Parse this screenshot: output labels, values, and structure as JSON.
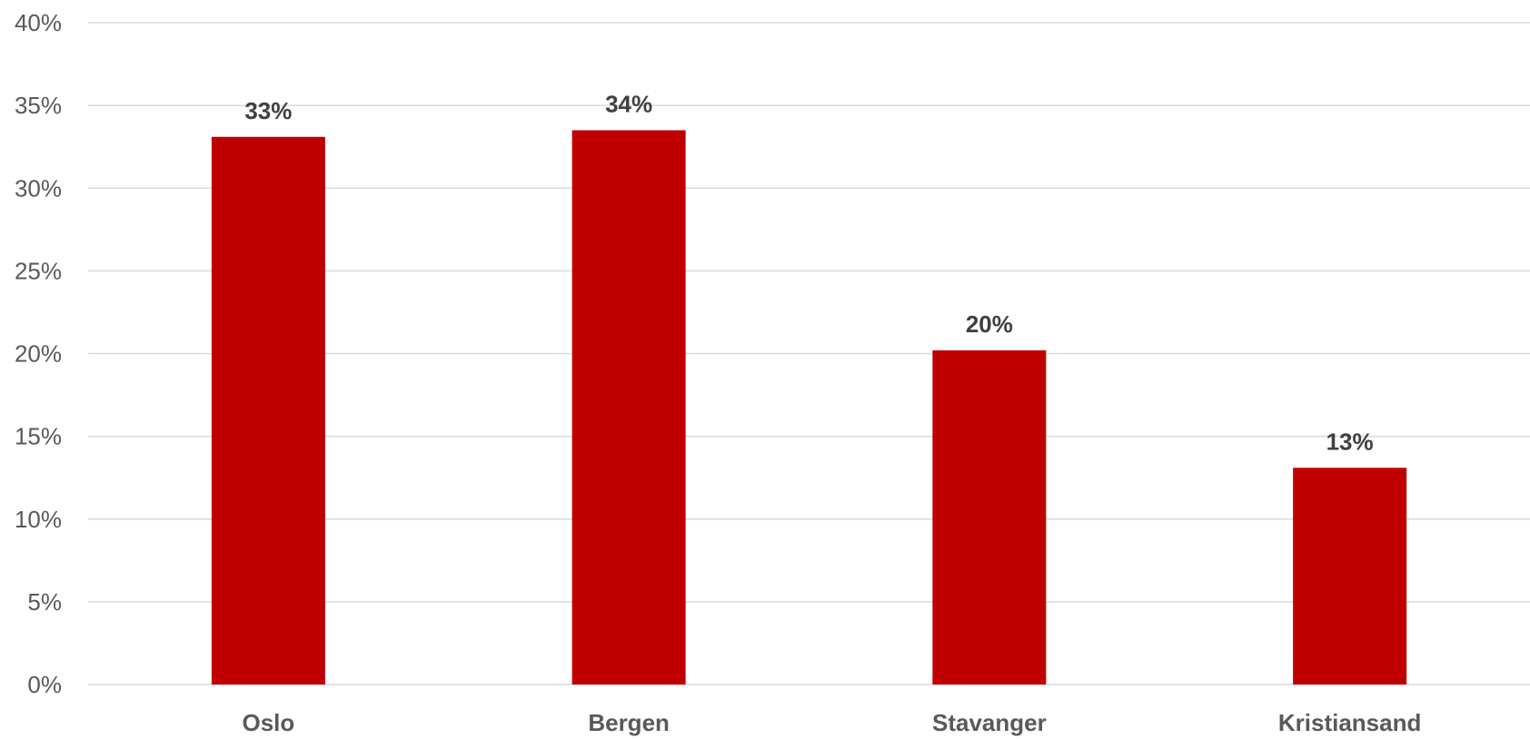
{
  "chart_data": {
    "type": "bar",
    "categories": [
      "Oslo",
      "Bergen",
      "Stavanger",
      "Kristiansand"
    ],
    "values": [
      33.1,
      33.5,
      20.2,
      13.1
    ],
    "data_labels": [
      "33%",
      "34%",
      "20%",
      "13%"
    ],
    "y_ticks": [
      0,
      5,
      10,
      15,
      20,
      25,
      30,
      35,
      40
    ],
    "y_tick_labels": [
      "0%",
      "5%",
      "10%",
      "15%",
      "20%",
      "25%",
      "30%",
      "35%",
      "40%"
    ],
    "ylim": [
      0,
      40
    ],
    "grid": true,
    "legend": "none",
    "bar_color": "#c00000",
    "grid_color": "#d9d9d9"
  }
}
